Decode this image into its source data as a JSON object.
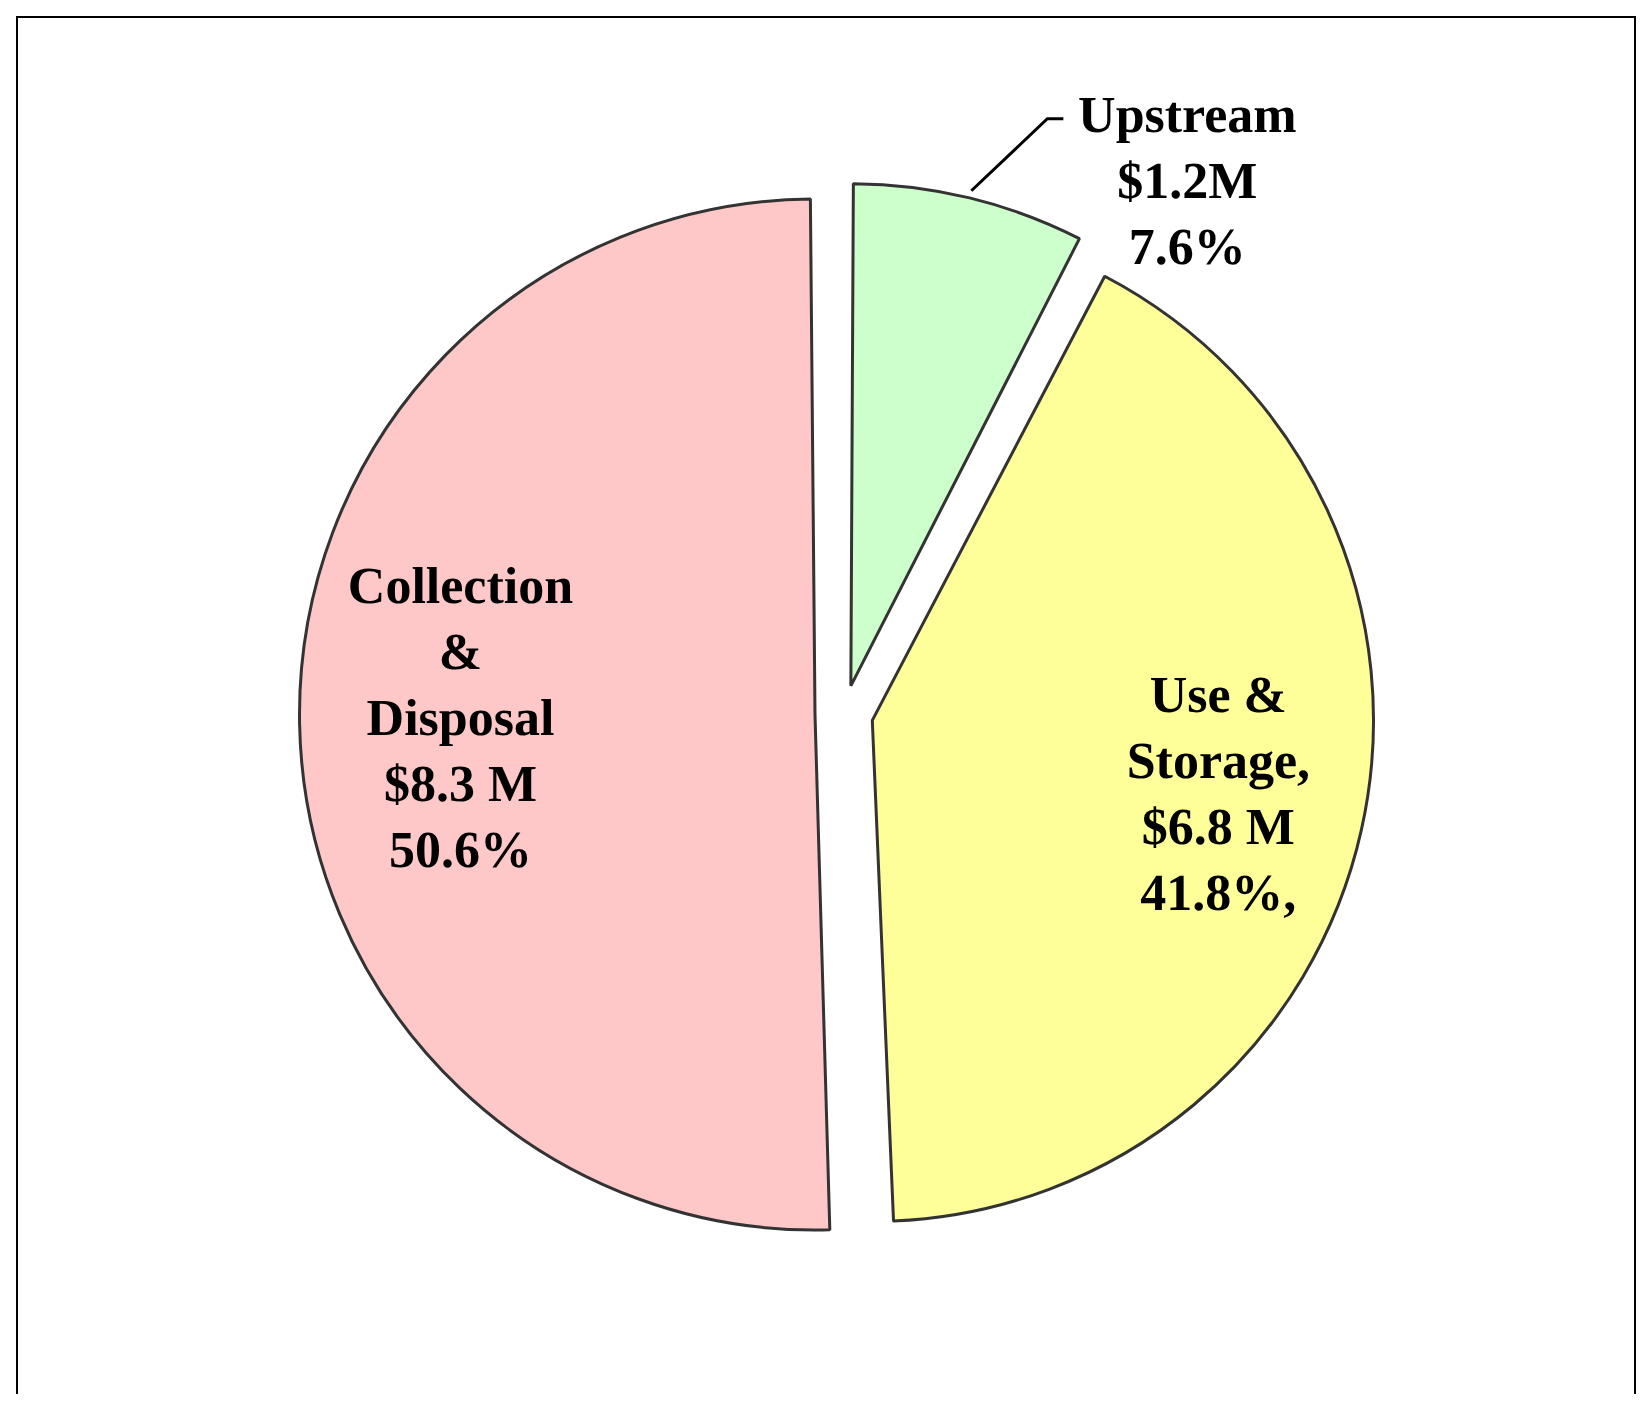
{
  "chart_data": {
    "type": "pie",
    "categories": [
      "Upstream",
      "Use & Storage",
      "Collection & Disposal"
    ],
    "values": [
      7.6,
      41.8,
      50.6
    ],
    "value_labels": [
      "$1.2M 7.6%",
      ", $6.8 M 41.8%,",
      "$8.3 M 50.6%"
    ],
    "colors": [
      "#ccffcc",
      "#ffff99",
      "#ffc8c8"
    ],
    "legend": false
  }
}
